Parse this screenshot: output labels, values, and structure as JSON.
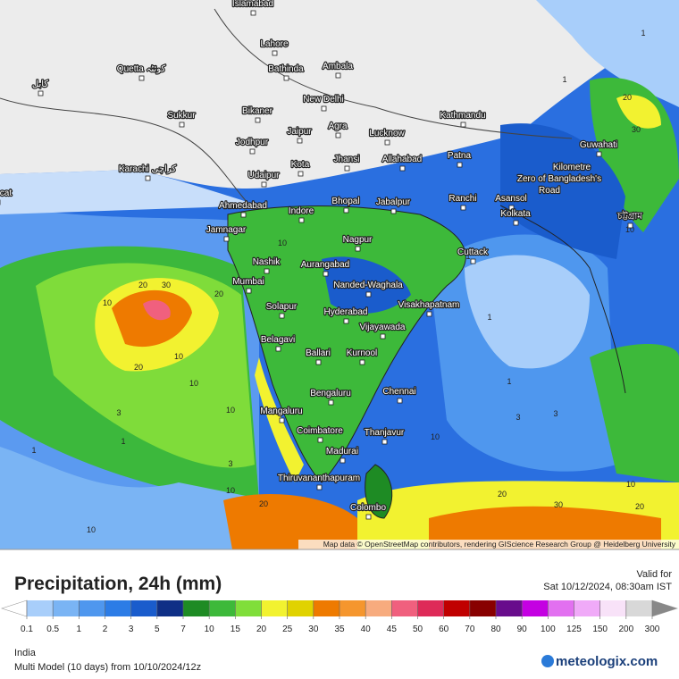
{
  "map": {
    "cities": [
      "Islamabad",
      "Lahore",
      "Quetta کوئٹہ",
      "Bathinda",
      "Ambala",
      "کابل",
      "New Delhi",
      "Sukkur",
      "Bikaner",
      "Agra",
      "Lucknow",
      "Kathmandu",
      "Jaipur",
      "Jodhpur",
      "Guwahati",
      "Karachi کراچی",
      "Kota",
      "Jhansi",
      "Allahabad",
      "Patna",
      "Kilometre",
      "Zero of Bangladesh's",
      "Road",
      "Muscat",
      "Udaipur",
      "Bhopal",
      "Jabalpur",
      "Ranchi",
      "Asansol",
      "Ahmedabad",
      "Indore",
      "Kolkata",
      "চট্টগ্রাম",
      "Jamnagar",
      "Nagpur",
      "Cuttack",
      "Nashik",
      "Aurangabad",
      "Mumbai",
      "Nanded-Waghala",
      "Visakhapatnam",
      "Solapur",
      "Hyderabad",
      "Vijayawada",
      "Belagavi",
      "Ballari",
      "Kurnool",
      "Bengaluru",
      "Chennai",
      "Mangaluru",
      "Coimbatore",
      "Thanjavur",
      "Madurai",
      "Thiruvananthapuram",
      "Colombo"
    ],
    "contour_labels": [
      20,
      30,
      10,
      20,
      20,
      10,
      10,
      3,
      1,
      10,
      3,
      1,
      10,
      20,
      10,
      10,
      1,
      1,
      3,
      10,
      20,
      30,
      20,
      10,
      1,
      30,
      20,
      1,
      10,
      3,
      1
    ],
    "attribution": "Map data © OpenStreetMap contributors, rendering GIScience Research Group @ Heidelberg University"
  },
  "legend": {
    "title": "Precipitation, 24h (mm)",
    "valid_label": "Valid for",
    "valid_time": "Sat 10/12/2024, 08:30am IST",
    "ticks": [
      0.1,
      0.5,
      1,
      2,
      3,
      5,
      7,
      10,
      15,
      20,
      25,
      30,
      35,
      40,
      45,
      50,
      60,
      70,
      80,
      90,
      100,
      125,
      150,
      200,
      300
    ],
    "colors": [
      "#a8cefa",
      "#7ab4f4",
      "#4f97ee",
      "#2c7ce6",
      "#1a5ccc",
      "#0f2f86",
      "#1e8b24",
      "#3db93a",
      "#80de3a",
      "#f2f230",
      "#e0d200",
      "#ee7a00",
      "#f5962e",
      "#f7ab7e",
      "#f0607e",
      "#de2a58",
      "#c00000",
      "#880000",
      "#680c8c",
      "#c400e2",
      "#e270f0",
      "#f0aaf8",
      "#f8e2f8",
      "#d8d8d8"
    ],
    "below_color": "#ffffff",
    "above_color": "#888888",
    "region": "India",
    "model": "Multi Model (10 days) from 10/10/2024/12z",
    "brand": "meteologix.com"
  }
}
